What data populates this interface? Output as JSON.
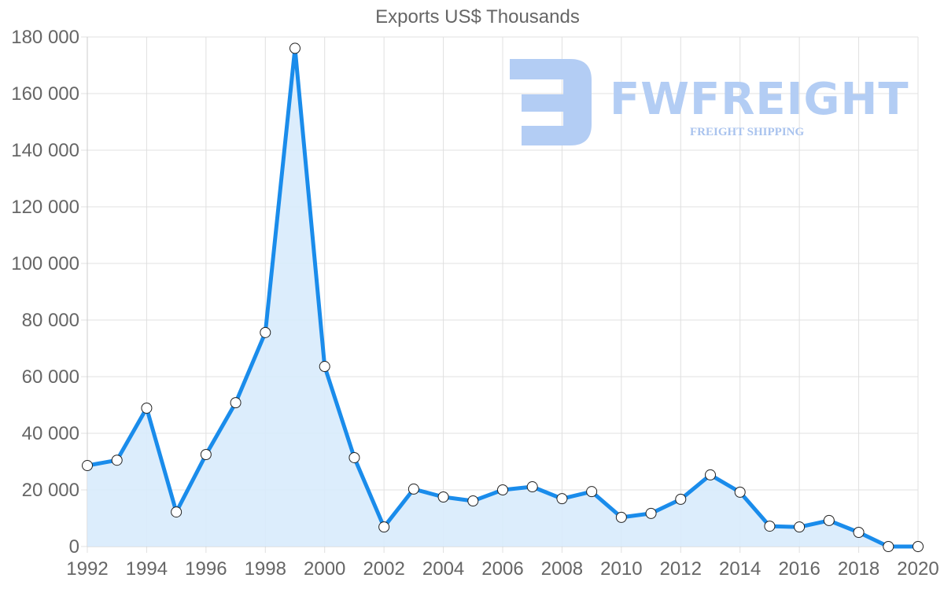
{
  "chart_data": {
    "type": "line",
    "title": "Exports US$ Thousands",
    "xlabel": "",
    "ylabel": "",
    "x": [
      1992,
      1993,
      1994,
      1995,
      1996,
      1997,
      1998,
      1999,
      2000,
      2001,
      2002,
      2003,
      2004,
      2005,
      2006,
      2007,
      2008,
      2009,
      2010,
      2011,
      2012,
      2013,
      2014,
      2015,
      2016,
      2017,
      2018,
      2019,
      2020
    ],
    "series": [
      {
        "name": "Exports US$ Thousands",
        "values": [
          28600,
          30500,
          48900,
          12200,
          32500,
          50800,
          75600,
          176000,
          63600,
          31400,
          6900,
          20300,
          17500,
          16100,
          20000,
          21100,
          16900,
          19400,
          10300,
          11700,
          16700,
          25300,
          19200,
          7200,
          6900,
          9200,
          5000,
          0,
          0
        ]
      }
    ],
    "ylim": [
      0,
      180000
    ],
    "yticks": [
      "0",
      "20 000",
      "40 000",
      "60 000",
      "80 000",
      "100 000",
      "120 000",
      "140 000",
      "160 000",
      "180 000"
    ],
    "xticks": [
      "1992",
      "1994",
      "1996",
      "1998",
      "2000",
      "2002",
      "2004",
      "2006",
      "2008",
      "2010",
      "2012",
      "2014",
      "2016",
      "2018",
      "2020"
    ],
    "grid": true,
    "legend": "none",
    "fill": true,
    "colors": {
      "line": "#1a8ceb",
      "fill": "#d8ebfc",
      "marker_fill": "#ffffff",
      "marker_stroke": "#222222",
      "grid": "#e0e0e0",
      "text": "#666666"
    }
  },
  "watermark": {
    "name": "FWFREIGHT",
    "tagline": "FREIGHT SHIPPING"
  }
}
